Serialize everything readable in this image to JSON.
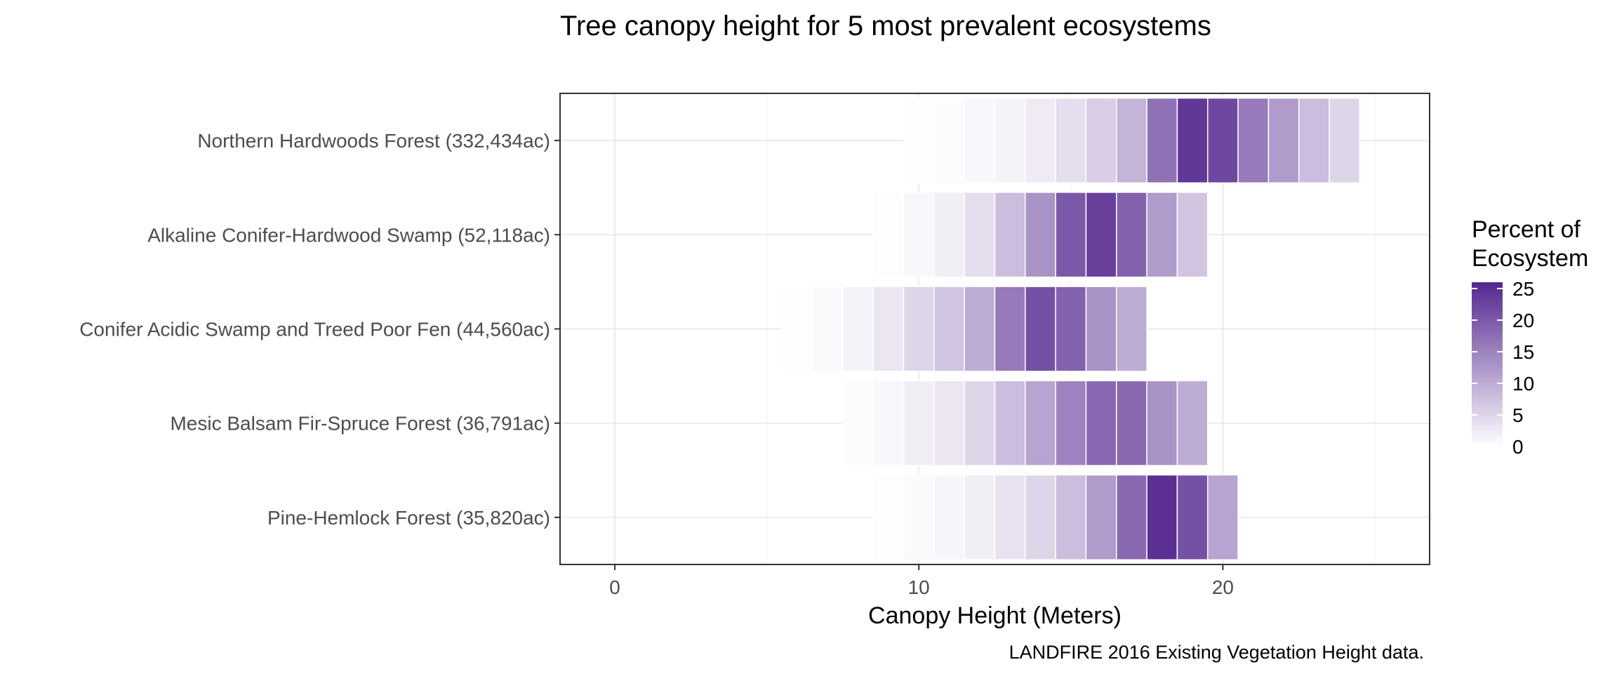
{
  "chart_data": {
    "type": "heatmap",
    "title": "Tree canopy height for 5 most prevalent ecosystems",
    "xlabel": "Canopy Height (Meters)",
    "ylabel": "",
    "caption": "LANDFIRE 2016 Existing Vegetation Height data.",
    "xlim": [
      -1.8,
      26.8
    ],
    "xticks": [
      0,
      10,
      20
    ],
    "x_minor_ticks": [
      5,
      15,
      25
    ],
    "grid": true,
    "legend": {
      "title_lines": [
        "Percent of",
        "Ecosystem"
      ],
      "position": "right",
      "ticks": [
        0,
        5,
        10,
        15,
        20,
        25
      ],
      "min": 0,
      "max": 26,
      "low_color": "#ffffff",
      "high_color": "#54278f"
    },
    "bin_width": 1,
    "rows": [
      {
        "label": "Northern Hardwoods Forest (332,434ac)",
        "cells": [
          [
            10,
            0.3
          ],
          [
            11,
            0.5
          ],
          [
            12,
            1
          ],
          [
            13,
            1.5
          ],
          [
            14,
            2.5
          ],
          [
            15,
            4
          ],
          [
            16,
            6
          ],
          [
            17,
            9
          ],
          [
            18,
            17
          ],
          [
            19,
            24
          ],
          [
            20,
            22
          ],
          [
            21,
            16
          ],
          [
            22,
            12
          ],
          [
            23,
            8
          ],
          [
            24,
            5
          ]
        ]
      },
      {
        "label": "Alkaline Conifer-Hardwood Swamp (52,118ac)",
        "cells": [
          [
            9,
            0.3
          ],
          [
            10,
            1
          ],
          [
            11,
            2
          ],
          [
            12,
            4
          ],
          [
            13,
            8
          ],
          [
            14,
            13
          ],
          [
            15,
            20
          ],
          [
            16,
            23
          ],
          [
            17,
            19
          ],
          [
            18,
            12
          ],
          [
            19,
            7
          ]
        ]
      },
      {
        "label": "Conifer Acidic Swamp and Treed Poor Fen (44,560ac)",
        "cells": [
          [
            6,
            0.3
          ],
          [
            7,
            0.7
          ],
          [
            8,
            1.5
          ],
          [
            9,
            3
          ],
          [
            10,
            5
          ],
          [
            11,
            7
          ],
          [
            12,
            10
          ],
          [
            13,
            16
          ],
          [
            14,
            21
          ],
          [
            15,
            19
          ],
          [
            16,
            13
          ],
          [
            17,
            10
          ]
        ]
      },
      {
        "label": "Mesic Balsam Fir-Spruce Forest (36,791ac)",
        "cells": [
          [
            8,
            0.5
          ],
          [
            9,
            1
          ],
          [
            10,
            2
          ],
          [
            11,
            3
          ],
          [
            12,
            5
          ],
          [
            13,
            8
          ],
          [
            14,
            11
          ],
          [
            15,
            15
          ],
          [
            16,
            18
          ],
          [
            17,
            18
          ],
          [
            18,
            13
          ],
          [
            19,
            10
          ]
        ]
      },
      {
        "label": "Pine-Hemlock Forest (35,820ac)",
        "cells": [
          [
            9,
            0.3
          ],
          [
            10,
            0.7
          ],
          [
            11,
            1.2
          ],
          [
            12,
            2
          ],
          [
            13,
            3.5
          ],
          [
            14,
            5
          ],
          [
            15,
            8
          ],
          [
            16,
            12
          ],
          [
            17,
            18
          ],
          [
            18,
            25
          ],
          [
            19,
            21
          ],
          [
            20,
            11
          ]
        ]
      }
    ]
  }
}
